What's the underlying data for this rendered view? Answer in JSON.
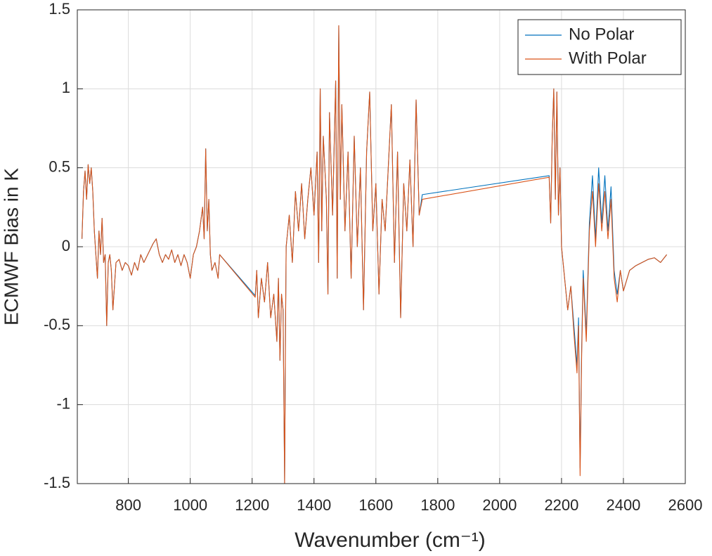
{
  "chart_data": {
    "type": "line",
    "xlabel": "Wavenumber (cm⁻¹)",
    "ylabel": "ECMWF Bias in K",
    "xlim": [
      635,
      2600
    ],
    "ylim": [
      -1.5,
      1.5
    ],
    "xticks": [
      800,
      1000,
      1200,
      1400,
      1600,
      1800,
      2000,
      2200,
      2400,
      2600
    ],
    "yticks": [
      -1.5,
      -1,
      -0.5,
      0,
      0.5,
      1,
      1.5
    ],
    "grid": true,
    "legend": "top-right",
    "x": [
      650,
      655,
      660,
      665,
      670,
      675,
      680,
      685,
      690,
      695,
      700,
      705,
      710,
      715,
      720,
      725,
      730,
      735,
      740,
      745,
      750,
      760,
      770,
      780,
      790,
      800,
      810,
      820,
      830,
      840,
      850,
      860,
      870,
      880,
      890,
      900,
      910,
      920,
      930,
      940,
      950,
      960,
      970,
      980,
      990,
      1000,
      1010,
      1020,
      1030,
      1040,
      1045,
      1050,
      1055,
      1060,
      1065,
      1070,
      1080,
      1090,
      1095,
      1210,
      1215,
      1220,
      1230,
      1240,
      1250,
      1260,
      1270,
      1280,
      1285,
      1290,
      1295,
      1300,
      1305,
      1308,
      1310,
      1320,
      1330,
      1340,
      1350,
      1360,
      1370,
      1380,
      1390,
      1400,
      1410,
      1415,
      1420,
      1425,
      1430,
      1440,
      1445,
      1450,
      1460,
      1470,
      1475,
      1480,
      1485,
      1490,
      1500,
      1510,
      1520,
      1530,
      1540,
      1550,
      1560,
      1570,
      1580,
      1590,
      1600,
      1610,
      1620,
      1630,
      1640,
      1650,
      1660,
      1670,
      1680,
      1690,
      1700,
      1710,
      1720,
      1730,
      1740,
      1750,
      2160,
      2165,
      2170,
      2175,
      2180,
      2185,
      2190,
      2195,
      2200,
      2210,
      2220,
      2230,
      2240,
      2250,
      2255,
      2260,
      2265,
      2270,
      2280,
      2290,
      2300,
      2310,
      2320,
      2330,
      2340,
      2350,
      2360,
      2370,
      2380,
      2390,
      2400,
      2420,
      2440,
      2460,
      2480,
      2500,
      2520,
      2540
    ],
    "series": [
      {
        "name": "No Polar",
        "color": "#0072bd",
        "values": [
          0.05,
          0.35,
          0.48,
          0.3,
          0.52,
          0.4,
          0.5,
          0.35,
          0.1,
          -0.05,
          -0.2,
          0.1,
          -0.05,
          0.18,
          -0.1,
          -0.05,
          -0.5,
          -0.1,
          -0.05,
          -0.15,
          -0.4,
          -0.1,
          -0.08,
          -0.15,
          -0.1,
          -0.12,
          -0.18,
          -0.1,
          -0.15,
          -0.05,
          -0.1,
          -0.06,
          -0.02,
          0.02,
          0.05,
          -0.05,
          -0.1,
          -0.05,
          -0.08,
          -0.02,
          -0.1,
          -0.05,
          -0.12,
          -0.05,
          -0.1,
          -0.2,
          -0.05,
          0.0,
          0.1,
          0.25,
          0.05,
          0.62,
          0.1,
          0.3,
          -0.05,
          -0.15,
          -0.1,
          -0.2,
          -0.05,
          -0.31,
          -0.15,
          -0.45,
          -0.2,
          -0.35,
          -0.1,
          -0.45,
          -0.3,
          -0.6,
          -0.2,
          -0.72,
          -0.3,
          -0.4,
          -1.5,
          -0.5,
          0.0,
          0.2,
          -0.1,
          0.35,
          0.1,
          0.4,
          0.05,
          0.3,
          0.5,
          0.2,
          0.6,
          -0.1,
          1.0,
          0.1,
          0.7,
          0.3,
          -0.3,
          0.85,
          0.2,
          1.05,
          -0.2,
          1.4,
          0.3,
          0.9,
          0.1,
          0.6,
          -0.2,
          0.7,
          0.0,
          0.5,
          -0.4,
          0.6,
          0.98,
          0.1,
          0.4,
          -0.3,
          0.3,
          0.1,
          0.5,
          0.9,
          -0.1,
          0.6,
          -0.45,
          0.4,
          0.1,
          0.55,
          0.0,
          0.93,
          0.2,
          0.33,
          0.45,
          0.15,
          0.7,
          1.0,
          0.3,
          0.98,
          0.2,
          0.5,
          0.0,
          -0.2,
          -0.4,
          -0.25,
          -0.5,
          -0.75,
          -0.45,
          -1.4,
          -0.65,
          -0.15,
          -0.55,
          0.15,
          0.45,
          0.05,
          0.5,
          0.15,
          0.45,
          0.1,
          0.38,
          -0.15,
          -0.3,
          -0.15,
          -0.28,
          -0.15,
          -0.12,
          -0.1,
          -0.08,
          -0.07,
          -0.1,
          -0.05
        ]
      },
      {
        "name": "With Polar",
        "color": "#d95319",
        "values": [
          0.05,
          0.35,
          0.48,
          0.3,
          0.52,
          0.4,
          0.5,
          0.35,
          0.1,
          -0.05,
          -0.2,
          0.1,
          -0.05,
          0.18,
          -0.1,
          -0.05,
          -0.5,
          -0.1,
          -0.05,
          -0.15,
          -0.4,
          -0.1,
          -0.08,
          -0.15,
          -0.1,
          -0.12,
          -0.18,
          -0.1,
          -0.15,
          -0.05,
          -0.1,
          -0.06,
          -0.02,
          0.02,
          0.05,
          -0.05,
          -0.1,
          -0.05,
          -0.08,
          -0.02,
          -0.1,
          -0.05,
          -0.12,
          -0.05,
          -0.1,
          -0.2,
          -0.05,
          0.0,
          0.1,
          0.25,
          0.05,
          0.62,
          0.1,
          0.3,
          -0.05,
          -0.15,
          -0.1,
          -0.2,
          -0.05,
          -0.32,
          -0.15,
          -0.45,
          -0.2,
          -0.35,
          -0.1,
          -0.45,
          -0.3,
          -0.6,
          -0.2,
          -0.72,
          -0.3,
          -0.4,
          -1.5,
          -0.5,
          0.0,
          0.2,
          -0.1,
          0.35,
          0.1,
          0.4,
          0.05,
          0.3,
          0.5,
          0.2,
          0.6,
          -0.1,
          1.0,
          0.1,
          0.7,
          0.3,
          -0.3,
          0.85,
          0.2,
          1.05,
          -0.2,
          1.4,
          0.3,
          0.9,
          0.1,
          0.6,
          -0.2,
          0.7,
          0.0,
          0.5,
          -0.4,
          0.6,
          0.98,
          0.1,
          0.4,
          -0.3,
          0.3,
          0.1,
          0.5,
          0.9,
          -0.1,
          0.6,
          -0.45,
          0.4,
          0.1,
          0.55,
          0.0,
          0.93,
          0.2,
          0.3,
          0.44,
          0.15,
          0.7,
          1.0,
          0.3,
          0.98,
          0.2,
          0.5,
          0.0,
          -0.2,
          -0.4,
          -0.25,
          -0.55,
          -0.8,
          -0.5,
          -1.45,
          -0.7,
          -0.2,
          -0.6,
          0.1,
          0.35,
          0.0,
          0.4,
          0.1,
          0.35,
          0.05,
          0.3,
          -0.2,
          -0.35,
          -0.15,
          -0.28,
          -0.15,
          -0.12,
          -0.1,
          -0.08,
          -0.07,
          -0.1,
          -0.05
        ]
      }
    ]
  }
}
